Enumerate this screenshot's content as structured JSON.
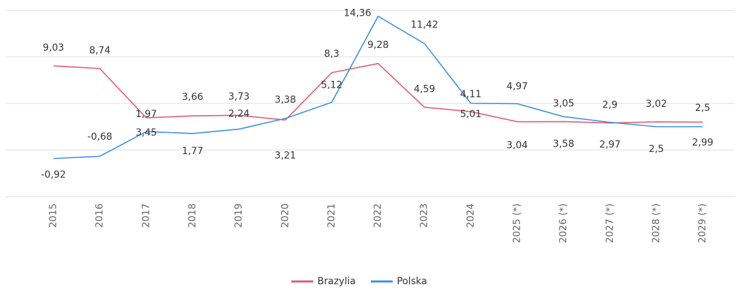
{
  "chart_data": {
    "type": "line",
    "categories": [
      "2015",
      "2016",
      "2017",
      "2018",
      "2019",
      "2020",
      "2021",
      "2022",
      "2023",
      "2024",
      "2025 (*)",
      "2026 (*)",
      "2027 (*)",
      "2028 (*)",
      "2029 (*)"
    ],
    "series": [
      {
        "name": "Brazylia",
        "color": "#e05a75",
        "values": [
          9.03,
          8.74,
          3.45,
          3.66,
          3.73,
          3.21,
          8.3,
          9.28,
          4.59,
          4.11,
          3.04,
          3.05,
          2.9,
          3.02,
          2.99
        ],
        "value_labels": [
          "9,03",
          "8,74",
          "3,45",
          "3,66",
          "3,73",
          "3,21",
          "8,3",
          "9,28",
          "4,59",
          "4,11",
          "3,04",
          "3,05",
          "2,9",
          "3,02",
          "2,99"
        ]
      },
      {
        "name": "Polska",
        "color": "#3a8fe0",
        "values": [
          -0.92,
          -0.68,
          1.97,
          1.77,
          2.24,
          3.38,
          5.12,
          14.36,
          11.42,
          5.01,
          4.97,
          3.58,
          2.97,
          2.5,
          2.5
        ],
        "value_labels": [
          "-0,92",
          "-0,68",
          "1,97",
          "1,77",
          "2,24",
          "3,38",
          "5,12",
          "14,36",
          "11,42",
          "5,01",
          "4,97",
          "3,58",
          "2,97",
          "2,5",
          "2,5"
        ]
      }
    ],
    "ylim": [
      -5,
      15
    ],
    "yticks": [
      -5,
      0,
      5,
      10,
      15
    ],
    "grid": true,
    "legend": "bottom"
  }
}
